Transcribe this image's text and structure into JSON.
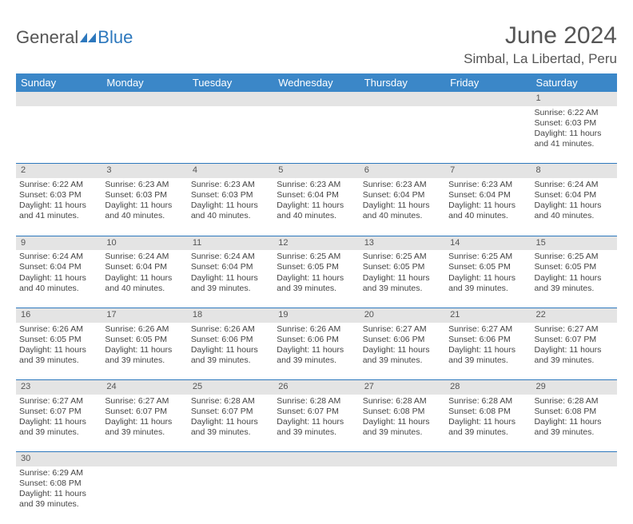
{
  "logo": {
    "text1": "General",
    "text2": "Blue"
  },
  "title": "June 2024",
  "location": "Simbal, La Libertad, Peru",
  "colors": {
    "header_bg": "#3b87c8",
    "rule": "#2d78bd",
    "daynum_bg": "#e4e4e4",
    "text": "#444444"
  },
  "weekdays": [
    "Sunday",
    "Monday",
    "Tuesday",
    "Wednesday",
    "Thursday",
    "Friday",
    "Saturday"
  ],
  "weeks": [
    {
      "nums": [
        "",
        "",
        "",
        "",
        "",
        "",
        "1"
      ],
      "cells": [
        null,
        null,
        null,
        null,
        null,
        null,
        {
          "sunrise": "Sunrise: 6:22 AM",
          "sunset": "Sunset: 6:03 PM",
          "day1": "Daylight: 11 hours",
          "day2": "and 41 minutes."
        }
      ]
    },
    {
      "nums": [
        "2",
        "3",
        "4",
        "5",
        "6",
        "7",
        "8"
      ],
      "cells": [
        {
          "sunrise": "Sunrise: 6:22 AM",
          "sunset": "Sunset: 6:03 PM",
          "day1": "Daylight: 11 hours",
          "day2": "and 41 minutes."
        },
        {
          "sunrise": "Sunrise: 6:23 AM",
          "sunset": "Sunset: 6:03 PM",
          "day1": "Daylight: 11 hours",
          "day2": "and 40 minutes."
        },
        {
          "sunrise": "Sunrise: 6:23 AM",
          "sunset": "Sunset: 6:03 PM",
          "day1": "Daylight: 11 hours",
          "day2": "and 40 minutes."
        },
        {
          "sunrise": "Sunrise: 6:23 AM",
          "sunset": "Sunset: 6:04 PM",
          "day1": "Daylight: 11 hours",
          "day2": "and 40 minutes."
        },
        {
          "sunrise": "Sunrise: 6:23 AM",
          "sunset": "Sunset: 6:04 PM",
          "day1": "Daylight: 11 hours",
          "day2": "and 40 minutes."
        },
        {
          "sunrise": "Sunrise: 6:23 AM",
          "sunset": "Sunset: 6:04 PM",
          "day1": "Daylight: 11 hours",
          "day2": "and 40 minutes."
        },
        {
          "sunrise": "Sunrise: 6:24 AM",
          "sunset": "Sunset: 6:04 PM",
          "day1": "Daylight: 11 hours",
          "day2": "and 40 minutes."
        }
      ]
    },
    {
      "nums": [
        "9",
        "10",
        "11",
        "12",
        "13",
        "14",
        "15"
      ],
      "cells": [
        {
          "sunrise": "Sunrise: 6:24 AM",
          "sunset": "Sunset: 6:04 PM",
          "day1": "Daylight: 11 hours",
          "day2": "and 40 minutes."
        },
        {
          "sunrise": "Sunrise: 6:24 AM",
          "sunset": "Sunset: 6:04 PM",
          "day1": "Daylight: 11 hours",
          "day2": "and 40 minutes."
        },
        {
          "sunrise": "Sunrise: 6:24 AM",
          "sunset": "Sunset: 6:04 PM",
          "day1": "Daylight: 11 hours",
          "day2": "and 39 minutes."
        },
        {
          "sunrise": "Sunrise: 6:25 AM",
          "sunset": "Sunset: 6:05 PM",
          "day1": "Daylight: 11 hours",
          "day2": "and 39 minutes."
        },
        {
          "sunrise": "Sunrise: 6:25 AM",
          "sunset": "Sunset: 6:05 PM",
          "day1": "Daylight: 11 hours",
          "day2": "and 39 minutes."
        },
        {
          "sunrise": "Sunrise: 6:25 AM",
          "sunset": "Sunset: 6:05 PM",
          "day1": "Daylight: 11 hours",
          "day2": "and 39 minutes."
        },
        {
          "sunrise": "Sunrise: 6:25 AM",
          "sunset": "Sunset: 6:05 PM",
          "day1": "Daylight: 11 hours",
          "day2": "and 39 minutes."
        }
      ]
    },
    {
      "nums": [
        "16",
        "17",
        "18",
        "19",
        "20",
        "21",
        "22"
      ],
      "cells": [
        {
          "sunrise": "Sunrise: 6:26 AM",
          "sunset": "Sunset: 6:05 PM",
          "day1": "Daylight: 11 hours",
          "day2": "and 39 minutes."
        },
        {
          "sunrise": "Sunrise: 6:26 AM",
          "sunset": "Sunset: 6:05 PM",
          "day1": "Daylight: 11 hours",
          "day2": "and 39 minutes."
        },
        {
          "sunrise": "Sunrise: 6:26 AM",
          "sunset": "Sunset: 6:06 PM",
          "day1": "Daylight: 11 hours",
          "day2": "and 39 minutes."
        },
        {
          "sunrise": "Sunrise: 6:26 AM",
          "sunset": "Sunset: 6:06 PM",
          "day1": "Daylight: 11 hours",
          "day2": "and 39 minutes."
        },
        {
          "sunrise": "Sunrise: 6:27 AM",
          "sunset": "Sunset: 6:06 PM",
          "day1": "Daylight: 11 hours",
          "day2": "and 39 minutes."
        },
        {
          "sunrise": "Sunrise: 6:27 AM",
          "sunset": "Sunset: 6:06 PM",
          "day1": "Daylight: 11 hours",
          "day2": "and 39 minutes."
        },
        {
          "sunrise": "Sunrise: 6:27 AM",
          "sunset": "Sunset: 6:07 PM",
          "day1": "Daylight: 11 hours",
          "day2": "and 39 minutes."
        }
      ]
    },
    {
      "nums": [
        "23",
        "24",
        "25",
        "26",
        "27",
        "28",
        "29"
      ],
      "cells": [
        {
          "sunrise": "Sunrise: 6:27 AM",
          "sunset": "Sunset: 6:07 PM",
          "day1": "Daylight: 11 hours",
          "day2": "and 39 minutes."
        },
        {
          "sunrise": "Sunrise: 6:27 AM",
          "sunset": "Sunset: 6:07 PM",
          "day1": "Daylight: 11 hours",
          "day2": "and 39 minutes."
        },
        {
          "sunrise": "Sunrise: 6:28 AM",
          "sunset": "Sunset: 6:07 PM",
          "day1": "Daylight: 11 hours",
          "day2": "and 39 minutes."
        },
        {
          "sunrise": "Sunrise: 6:28 AM",
          "sunset": "Sunset: 6:07 PM",
          "day1": "Daylight: 11 hours",
          "day2": "and 39 minutes."
        },
        {
          "sunrise": "Sunrise: 6:28 AM",
          "sunset": "Sunset: 6:08 PM",
          "day1": "Daylight: 11 hours",
          "day2": "and 39 minutes."
        },
        {
          "sunrise": "Sunrise: 6:28 AM",
          "sunset": "Sunset: 6:08 PM",
          "day1": "Daylight: 11 hours",
          "day2": "and 39 minutes."
        },
        {
          "sunrise": "Sunrise: 6:28 AM",
          "sunset": "Sunset: 6:08 PM",
          "day1": "Daylight: 11 hours",
          "day2": "and 39 minutes."
        }
      ]
    },
    {
      "nums": [
        "30",
        "",
        "",
        "",
        "",
        "",
        ""
      ],
      "cells": [
        {
          "sunrise": "Sunrise: 6:29 AM",
          "sunset": "Sunset: 6:08 PM",
          "day1": "Daylight: 11 hours",
          "day2": "and 39 minutes."
        },
        null,
        null,
        null,
        null,
        null,
        null
      ],
      "last": true
    }
  ]
}
